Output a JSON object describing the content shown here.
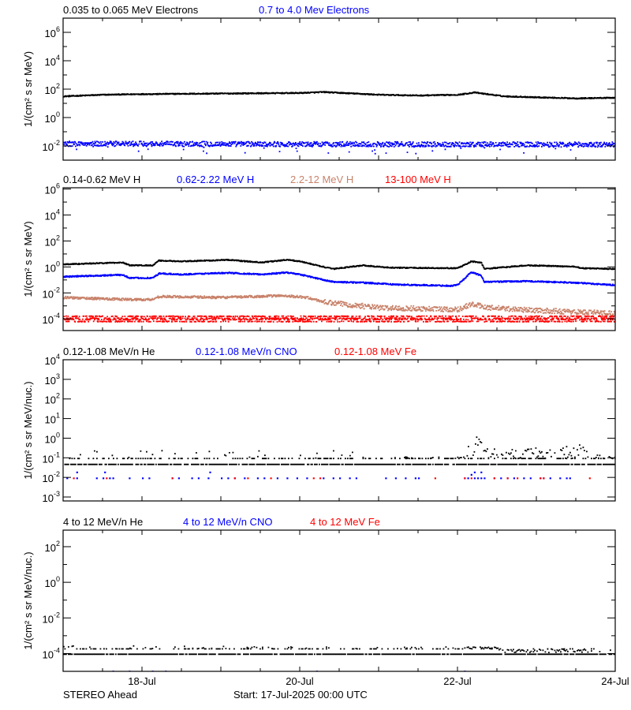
{
  "chart_data": [
    {
      "type": "scatter",
      "yscale": "log",
      "ylabel": "1/(cm² s sr MeV)",
      "ylim": [
        0.001,
        10000000
      ],
      "yticks_exp": [
        -2,
        0,
        2,
        4,
        6
      ],
      "series": [
        {
          "name": "0.035 to 0.065 MeV Electrons",
          "color": "#000000",
          "points": [
            [
              "2025-07-17T00:00",
              35
            ],
            [
              "2025-07-17T12:00",
              45
            ],
            [
              "2025-07-18T00:00",
              50
            ],
            [
              "2025-07-19T00:00",
              55
            ],
            [
              "2025-07-20T00:00",
              60
            ],
            [
              "2025-07-20T07:00",
              70
            ],
            [
              "2025-07-21T00:00",
              45
            ],
            [
              "2025-07-21T12:00",
              40
            ],
            [
              "2025-07-22T00:00",
              45
            ],
            [
              "2025-07-22T05:00",
              65
            ],
            [
              "2025-07-22T14:00",
              35
            ],
            [
              "2025-07-23T00:00",
              30
            ],
            [
              "2025-07-23T12:00",
              25
            ],
            [
              "2025-07-24T00:00",
              28
            ]
          ]
        },
        {
          "name": "0.7 to 4.0 Mev Electrons",
          "color": "#0000ff",
          "points": [
            [
              "2025-07-17T00:00",
              0.016
            ],
            [
              "2025-07-24T00:00",
              0.014
            ]
          ]
        }
      ]
    },
    {
      "type": "scatter",
      "yscale": "log",
      "ylabel": "1/(cm² s sr MeV)",
      "ylim": [
        1.26e-05,
        1260000
      ],
      "yticks_exp": [
        -4,
        -2,
        0,
        2,
        4,
        6
      ],
      "series": [
        {
          "name": "0.14-0.62 MeV H",
          "color": "#000000",
          "points": [
            [
              "2025-07-17T00:00",
              1.8
            ],
            [
              "2025-07-17T18:00",
              2.5
            ],
            [
              "2025-07-17T20:00",
              1.5
            ],
            [
              "2025-07-18T03:00",
              1.5
            ],
            [
              "2025-07-18T05:00",
              3.5
            ],
            [
              "2025-07-18T12:00",
              3
            ],
            [
              "2025-07-19T02:00",
              4
            ],
            [
              "2025-07-19T12:00",
              2.5
            ],
            [
              "2025-07-19T20:00",
              4
            ],
            [
              "2025-07-20T00:00",
              3
            ],
            [
              "2025-07-20T08:00",
              1
            ],
            [
              "2025-07-20T10:00",
              0.8
            ],
            [
              "2025-07-20T19:00",
              1.5
            ],
            [
              "2025-07-21T03:00",
              1
            ],
            [
              "2025-07-21T23:00",
              0.9
            ],
            [
              "2025-07-22T01:00",
              1.2
            ],
            [
              "2025-07-22T04:00",
              3
            ],
            [
              "2025-07-22T07:00",
              2.5
            ],
            [
              "2025-07-22T08:00",
              0.8
            ],
            [
              "2025-07-22T21:00",
              1.5
            ],
            [
              "2025-07-23T11:00",
              1.2
            ],
            [
              "2025-07-23T14:00",
              0.9
            ],
            [
              "2025-07-24T00:00",
              0.8
            ]
          ]
        },
        {
          "name": "0.62-2.22 MeV H",
          "color": "#0000ff",
          "points": [
            [
              "2025-07-17T00:00",
              0.2
            ],
            [
              "2025-07-17T18:00",
              0.28
            ],
            [
              "2025-07-17T20:00",
              0.16
            ],
            [
              "2025-07-18T03:00",
              0.16
            ],
            [
              "2025-07-18T05:00",
              0.35
            ],
            [
              "2025-07-18T12:00",
              0.3
            ],
            [
              "2025-07-19T02:00",
              0.4
            ],
            [
              "2025-07-19T12:00",
              0.3
            ],
            [
              "2025-07-19T20:00",
              0.42
            ],
            [
              "2025-07-20T00:00",
              0.3
            ],
            [
              "2025-07-20T08:00",
              0.1
            ],
            [
              "2025-07-20T10:00",
              0.08
            ],
            [
              "2025-07-20T19:00",
              0.07
            ],
            [
              "2025-07-21T05:00",
              0.05
            ],
            [
              "2025-07-21T22:00",
              0.04
            ],
            [
              "2025-07-22T00:00",
              0.05
            ],
            [
              "2025-07-22T04:00",
              0.45
            ],
            [
              "2025-07-22T07:00",
              0.25
            ],
            [
              "2025-07-22T08:00",
              0.08
            ],
            [
              "2025-07-22T21:00",
              0.09
            ],
            [
              "2025-07-23T11:00",
              0.07
            ],
            [
              "2025-07-24T00:00",
              0.045
            ]
          ]
        },
        {
          "name": "2.2-12 MeV H",
          "color": "#c8826a",
          "points": [
            [
              "2025-07-17T00:00",
              0.005
            ],
            [
              "2025-07-17T20:00",
              0.0035
            ],
            [
              "2025-07-18T03:00",
              0.0035
            ],
            [
              "2025-07-18T05:00",
              0.006
            ],
            [
              "2025-07-19T00:00",
              0.005
            ],
            [
              "2025-07-19T19:00",
              0.007
            ],
            [
              "2025-07-20T02:00",
              0.005
            ],
            [
              "2025-07-20T08:00",
              0.002
            ],
            [
              "2025-07-20T14:00",
              0.0015
            ],
            [
              "2025-07-21T00:00",
              0.0008
            ],
            [
              "2025-07-21T12:00",
              0.0007
            ],
            [
              "2025-07-22T00:00",
              0.0006
            ],
            [
              "2025-07-22T04:00",
              0.0015
            ],
            [
              "2025-07-22T10:00",
              0.0008
            ],
            [
              "2025-07-23T00:00",
              0.0005
            ],
            [
              "2025-07-24T00:00",
              0.0003
            ]
          ]
        },
        {
          "name": "13-100 MeV H",
          "color": "#ff0000",
          "points": [
            [
              "2025-07-17T00:00",
              0.00012
            ],
            [
              "2025-07-24T00:00",
              0.00011
            ]
          ]
        }
      ]
    },
    {
      "type": "scatter",
      "yscale": "log",
      "ylabel": "1/(cm² s sr MeV/nuc.)",
      "ylim": [
        0.00063,
        10000
      ],
      "yticks_exp": [
        -3,
        -2,
        -1,
        0,
        1,
        2,
        3,
        4
      ],
      "series": [
        {
          "name": "0.12-1.08 MeV/n He",
          "color": "#000000",
          "floor": 0.05,
          "row": 0.1,
          "points": [
            [
              "2025-07-17T00:00",
              0.25
            ],
            [
              "2025-07-20T18:00",
              0.25
            ],
            [
              "2025-07-20T19:00",
              0.12
            ],
            [
              "2025-07-22T02:00",
              0.12
            ],
            [
              "2025-07-22T04:00",
              2.5
            ],
            [
              "2025-07-22T06:00",
              1.2
            ],
            [
              "2025-07-22T09:00",
              0.5
            ],
            [
              "2025-07-22T12:00",
              0.25
            ],
            [
              "2025-07-23T14:00",
              0.5
            ],
            [
              "2025-07-23T16:00",
              0.15
            ],
            [
              "2025-07-24T00:00",
              0.15
            ]
          ]
        },
        {
          "name": "0.12-1.08 MeV/n CNO",
          "color": "#0000ff",
          "points": [
            [
              "2025-07-17T01:00",
              0.01
            ],
            [
              "2025-07-17T04:00",
              0.01
            ],
            [
              "2025-07-17T04:00",
              0.02
            ],
            [
              "2025-07-17T10:00",
              0.01
            ],
            [
              "2025-07-17T12:00",
              0.01
            ],
            [
              "2025-07-17T12:30",
              0.02
            ],
            [
              "2025-07-17T14:00",
              0.01
            ],
            [
              "2025-07-17T15:00",
              0.01
            ],
            [
              "2025-07-17T20:00",
              0.01
            ],
            [
              "2025-07-18T00:00",
              0.01
            ],
            [
              "2025-07-18T02:00",
              0.01
            ],
            [
              "2025-07-18T09:00",
              0.01
            ],
            [
              "2025-07-18T11:00",
              0.01
            ],
            [
              "2025-07-18T15:00",
              0.01
            ],
            [
              "2025-07-18T17:00",
              0.01
            ],
            [
              "2025-07-18T20:00",
              0.01
            ],
            [
              "2025-07-18T20:30",
              0.02
            ],
            [
              "2025-07-19T00:00",
              0.01
            ],
            [
              "2025-07-19T02:00",
              0.01
            ],
            [
              "2025-07-19T04:00",
              0.01
            ],
            [
              "2025-07-19T07:00",
              0.01
            ],
            [
              "2025-07-19T11:00",
              0.01
            ],
            [
              "2025-07-19T13:00",
              0.01
            ],
            [
              "2025-07-19T17:00",
              0.01
            ],
            [
              "2025-07-19T20:00",
              0.01
            ],
            [
              "2025-07-19T23:00",
              0.01
            ],
            [
              "2025-07-20T02:00",
              0.01
            ],
            [
              "2025-07-20T07:00",
              0.01
            ],
            [
              "2025-07-20T10:00",
              0.01
            ],
            [
              "2025-07-20T12:00",
              0.01
            ],
            [
              "2025-07-20T15:00",
              0.01
            ],
            [
              "2025-07-20T17:00",
              0.01
            ],
            [
              "2025-07-21T02:00",
              0.01
            ],
            [
              "2025-07-21T05:00",
              0.01
            ],
            [
              "2025-07-21T08:00",
              0.01
            ],
            [
              "2025-07-21T11:00",
              0.01
            ],
            [
              "2025-07-21T12:00",
              0.01
            ],
            [
              "2025-07-22T02:00",
              0.01
            ],
            [
              "2025-07-22T03:00",
              0.01
            ],
            [
              "2025-07-22T04:00",
              0.015
            ],
            [
              "2025-07-22T05:00",
              0.02
            ],
            [
              "2025-07-22T05:00",
              0.01
            ],
            [
              "2025-07-22T06:00",
              0.01
            ],
            [
              "2025-07-22T07:00",
              0.02
            ],
            [
              "2025-07-22T07:00",
              0.01
            ],
            [
              "2025-07-22T08:00",
              0.01
            ],
            [
              "2025-07-22T11:00",
              0.01
            ],
            [
              "2025-07-22T13:00",
              0.01
            ],
            [
              "2025-07-22T15:00",
              0.01
            ],
            [
              "2025-07-22T17:00",
              0.01
            ],
            [
              "2025-07-22T20:00",
              0.01
            ],
            [
              "2025-07-22T22:00",
              0.01
            ],
            [
              "2025-07-23T01:00",
              0.01
            ],
            [
              "2025-07-23T02:00",
              0.01
            ],
            [
              "2025-07-23T04:00",
              0.01
            ],
            [
              "2025-07-23T07:00",
              0.01
            ],
            [
              "2025-07-23T09:00",
              0.01
            ],
            [
              "2025-07-23T10:00",
              0.01
            ]
          ]
        },
        {
          "name": "0.12-1.08 MeV Fe",
          "color": "#ff0000",
          "points": [
            [
              "2025-07-17T03:00",
              0.01
            ],
            [
              "2025-07-17T13:00",
              0.01
            ],
            [
              "2025-07-18T09:00",
              0.01
            ],
            [
              "2025-07-19T04:00",
              0.01
            ],
            [
              "2025-07-19T08:00",
              0.01
            ],
            [
              "2025-07-19T15:00",
              0.01
            ],
            [
              "2025-07-20T04:00",
              0.01
            ],
            [
              "2025-07-20T06:00",
              0.01
            ],
            [
              "2025-07-21T17:00",
              0.01
            ],
            [
              "2025-07-22T02:00",
              0.01
            ],
            [
              "2025-07-22T04:00",
              0.01
            ],
            [
              "2025-07-22T11:00",
              0.01
            ],
            [
              "2025-07-22T15:00",
              0.01
            ],
            [
              "2025-07-22T18:00",
              0.01
            ],
            [
              "2025-07-23T01:00",
              0.01
            ],
            [
              "2025-07-23T02:00",
              0.01
            ],
            [
              "2025-07-23T16:00",
              0.01
            ]
          ]
        }
      ]
    },
    {
      "type": "scatter",
      "yscale": "log",
      "ylabel": "1/(cm² s sr MeV/nuc.)",
      "ylim": [
        1e-05,
        850
      ],
      "yticks_exp": [
        -4,
        -2,
        0,
        2
      ],
      "xticks": [
        "18-Jul",
        "20-Jul",
        "22-Jul",
        "24-Jul"
      ],
      "xtick_dates": [
        "2025-07-18T00:00",
        "2025-07-20T00:00",
        "2025-07-22T00:00",
        "2025-07-24T00:00"
      ],
      "series": [
        {
          "name": "4 to 12 MeV/n He",
          "color": "#000000",
          "floor": 0.0001,
          "row": 0.0002,
          "points": [
            [
              "2025-07-17T00:00",
              0.0003
            ],
            [
              "2025-07-22T12:00",
              0.00025
            ],
            [
              "2025-07-22T13:00",
              0.00012
            ],
            [
              "2025-07-24T00:00",
              0.00012
            ]
          ]
        },
        {
          "name": "4 to 12 MeV/n CNO",
          "color": "#0000ff",
          "points": [
            [
              "2025-07-17T15:00",
              1.1e-05
            ],
            [
              "2025-07-17T20:00",
              1.1e-05
            ],
            [
              "2025-07-18T03:00",
              1.1e-05
            ],
            [
              "2025-07-18T07:00",
              1.1e-05
            ],
            [
              "2025-07-20T05:00",
              1.1e-05
            ],
            [
              "2025-07-22T02:00",
              1.1e-05
            ]
          ]
        },
        {
          "name": "4 to 12 MeV Fe",
          "color": "#ff0000",
          "points": []
        }
      ]
    }
  ],
  "footer": {
    "spacecraft": "STEREO Ahead",
    "start": "Start: 17-Jul-2025 00:00 UTC"
  }
}
